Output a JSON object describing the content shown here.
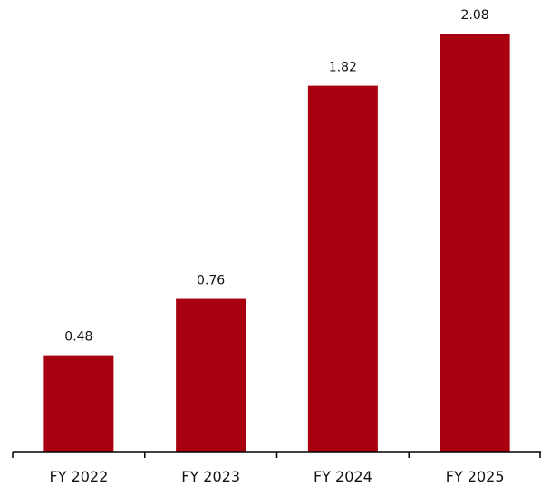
{
  "chart_data": {
    "type": "bar",
    "categories": [
      "FY 2022",
      "FY 2023",
      "FY 2024",
      "FY 2025"
    ],
    "values": [
      0.48,
      0.76,
      1.82,
      2.08
    ],
    "data_labels": [
      "0.48",
      "0.76",
      "1.82",
      "2.08"
    ],
    "title": "",
    "xlabel": "",
    "ylabel": "",
    "ylim": [
      0,
      2.2
    ],
    "grid": false,
    "legend": "none",
    "bar_color": "#a8000f"
  }
}
